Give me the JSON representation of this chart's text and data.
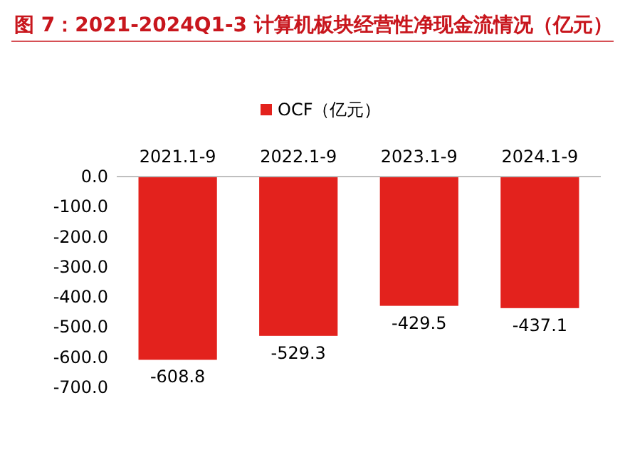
{
  "chart_data": {
    "type": "bar",
    "title": "图 7：2021-2024Q1-3 计算机板块经营性净现金流情况（亿元）",
    "categories": [
      "2021.1-9",
      "2022.1-9",
      "2023.1-9",
      "2024.1-9"
    ],
    "series": [
      {
        "name": "OCF（亿元）",
        "color": "#e3221d",
        "values": [
          -608.8,
          -529.3,
          -429.5,
          -437.1
        ]
      }
    ],
    "ylim": [
      -700,
      0
    ],
    "yticks": [
      {
        "value": 0,
        "label": "0.0"
      },
      {
        "value": -100,
        "label": "-100.0"
      },
      {
        "value": -200,
        "label": "-200.0"
      },
      {
        "value": -300,
        "label": "-300.0"
      },
      {
        "value": -400,
        "label": "-400.0"
      },
      {
        "value": -500,
        "label": "-500.0"
      },
      {
        "value": -600,
        "label": "-600.0"
      },
      {
        "value": -700,
        "label": "-700.0"
      }
    ],
    "legend": "top",
    "data_labels": true,
    "grid": false
  }
}
